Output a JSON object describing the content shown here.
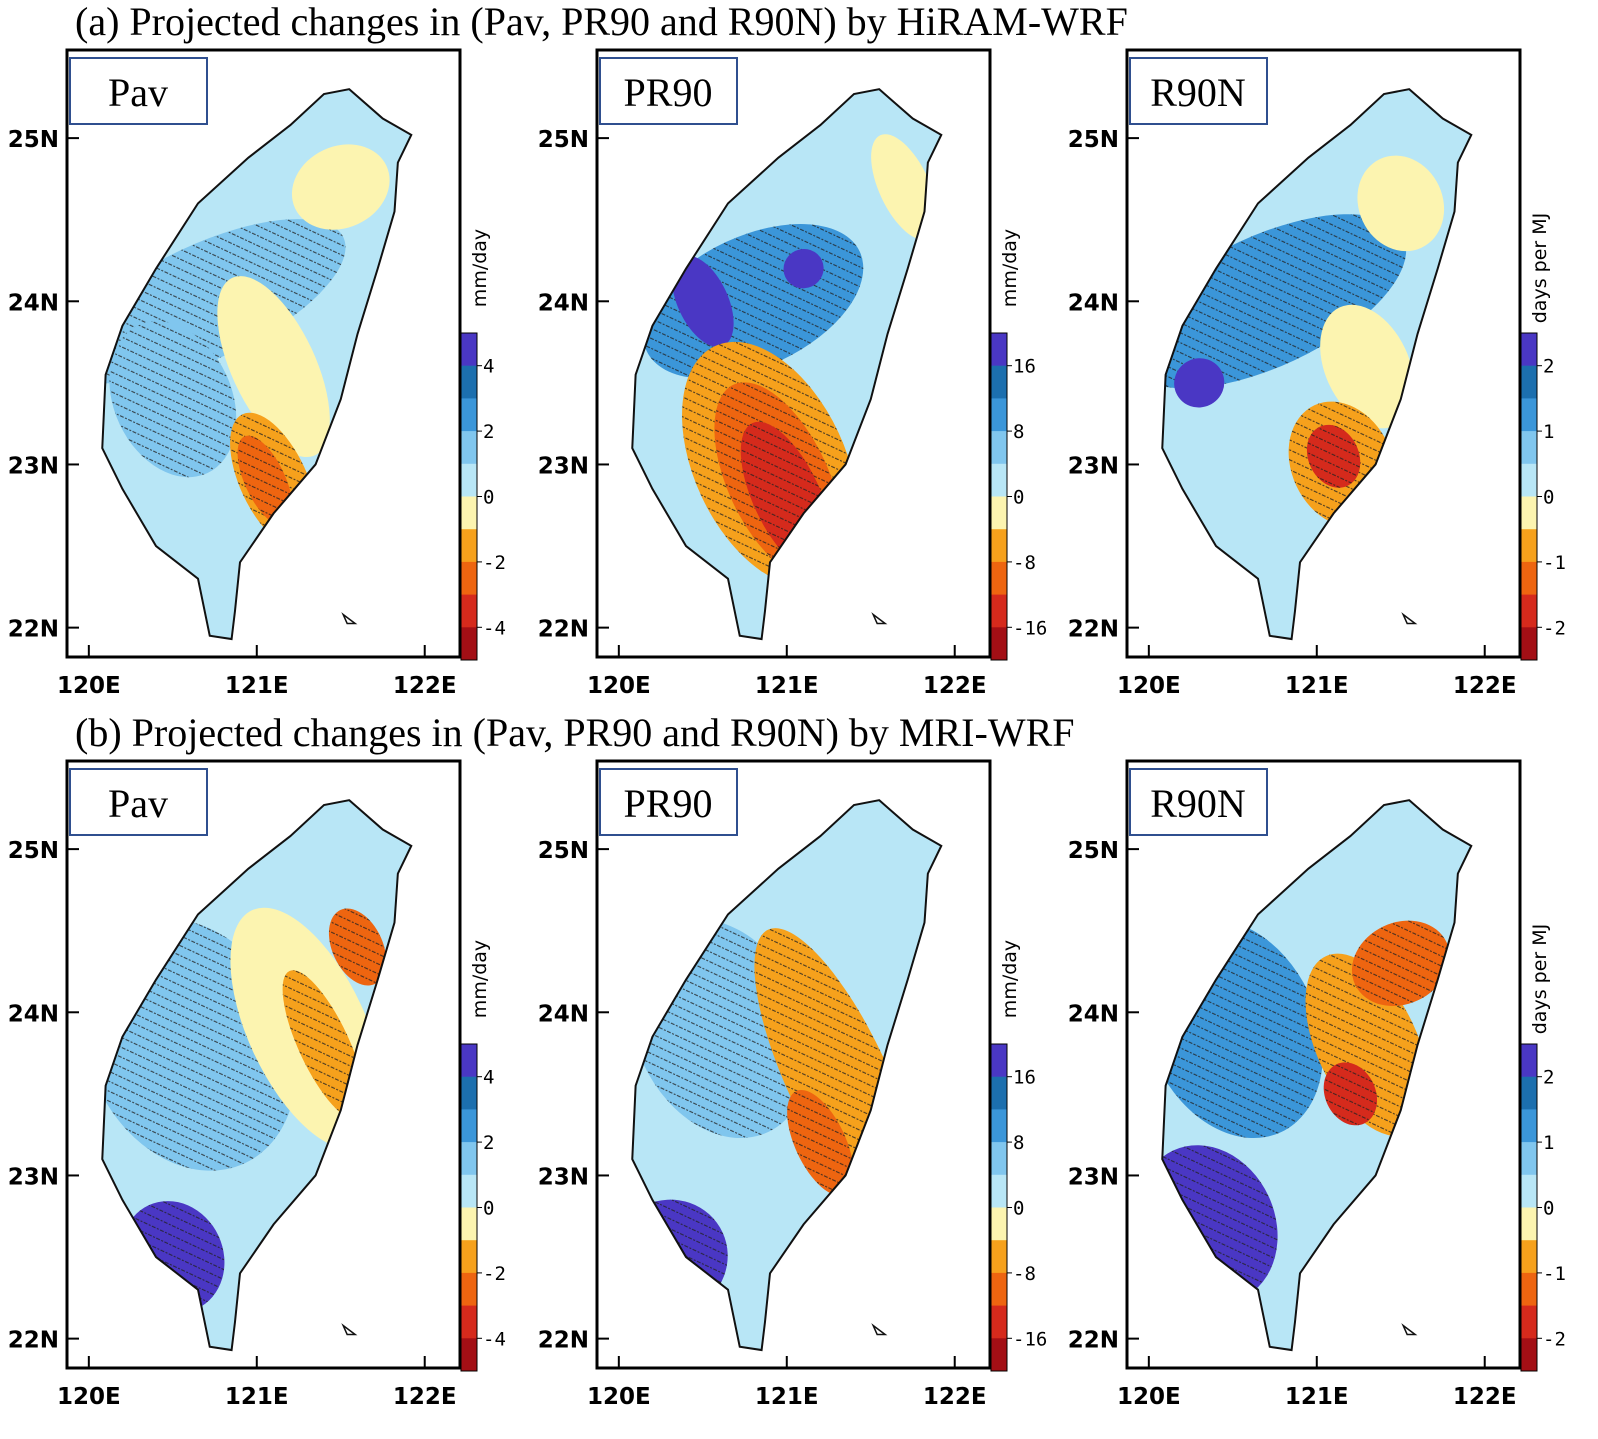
{
  "rows": [
    {
      "title": "(a) Projected changes in (Pav, PR90 and R90N) by HiRAM-WRF",
      "panels": [
        {
          "label": "Pav",
          "unit": "mm/day",
          "cticks": [
            4,
            2,
            0,
            -2,
            -4
          ],
          "clim": [
            5,
            -5
          ]
        },
        {
          "label": "PR90",
          "unit": "mm/day",
          "cticks": [
            16,
            8,
            0,
            -8,
            -16
          ],
          "clim": [
            20,
            -20
          ]
        },
        {
          "label": "R90N",
          "unit": "days per MJ",
          "cticks": [
            2,
            1,
            0,
            -1,
            -2
          ],
          "clim": [
            2.5,
            -2.5
          ]
        }
      ]
    },
    {
      "title": "(b) Projected changes in (Pav, PR90 and R90N) by MRI-WRF",
      "panels": [
        {
          "label": "Pav",
          "unit": "mm/day",
          "cticks": [
            4,
            2,
            0,
            -2,
            -4
          ],
          "clim": [
            5,
            -5
          ]
        },
        {
          "label": "PR90",
          "unit": "mm/day",
          "cticks": [
            16,
            8,
            0,
            -8,
            -16
          ],
          "clim": [
            20,
            -20
          ]
        },
        {
          "label": "R90N",
          "unit": "days per MJ",
          "cticks": [
            2,
            1,
            0,
            -1,
            -2
          ],
          "clim": [
            2.5,
            -2.5
          ]
        }
      ]
    }
  ],
  "lon_ticks": [
    {
      "value": 120,
      "label": "120E"
    },
    {
      "value": 121,
      "label": "121E"
    },
    {
      "value": 122,
      "label": "122E"
    }
  ],
  "lat_ticks": [
    {
      "value": 22,
      "label": "22N"
    },
    {
      "value": 23,
      "label": "23N"
    },
    {
      "value": 24,
      "label": "24N"
    },
    {
      "value": 25,
      "label": "25N"
    }
  ],
  "xlim": [
    119.87,
    122.21
  ],
  "ylim": [
    21.82,
    25.54
  ],
  "colors": [
    "#4a37c4",
    "#1c6fae",
    "#3b96d9",
    "#80c6ee",
    "#b8e6f6",
    "#fcf4b0",
    "#f6a11c",
    "#ee6510",
    "#d52a1c",
    "#a30f15"
  ]
}
